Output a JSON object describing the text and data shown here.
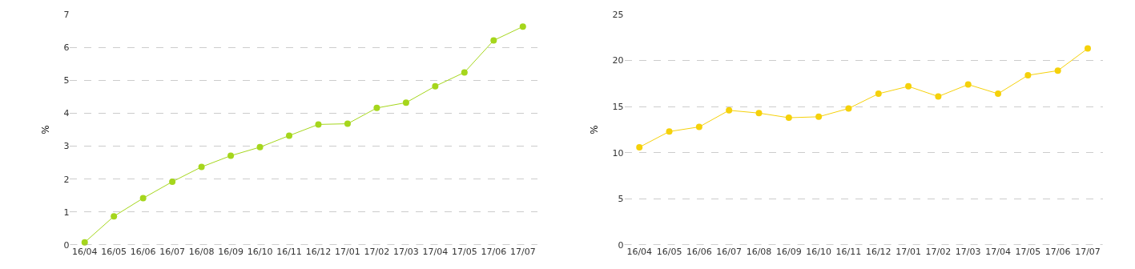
{
  "chart_data": [
    {
      "type": "line",
      "ylabel": "%",
      "categories": [
        "16/04",
        "16/05",
        "16/06",
        "16/07",
        "16/08",
        "16/09",
        "16/10",
        "16/11",
        "16/12",
        "17/01",
        "17/02",
        "17/03",
        "17/04",
        "17/05",
        "17/06",
        "17/07"
      ],
      "series": [
        {
          "color": "#a5d61c",
          "values": [
            0.08,
            0.87,
            1.42,
            1.92,
            2.37,
            2.71,
            2.97,
            3.32,
            3.66,
            3.68,
            4.16,
            4.32,
            4.82,
            5.24,
            6.21,
            6.63
          ]
        }
      ],
      "ylim": [
        0,
        7
      ],
      "yticks": [
        0,
        1,
        2,
        3,
        4,
        5,
        6,
        7
      ],
      "grid": "y",
      "marker": "circle",
      "line_style": "solid"
    },
    {
      "type": "line",
      "ylabel": "%",
      "categories": [
        "16/04",
        "16/05",
        "16/06",
        "16/07",
        "16/08",
        "16/09",
        "16/10",
        "16/11",
        "16/12",
        "17/01",
        "17/02",
        "17/03",
        "17/04",
        "17/05",
        "17/06",
        "17/07"
      ],
      "series": [
        {
          "color": "#f5d10a",
          "values": [
            10.6,
            12.3,
            12.8,
            14.6,
            14.3,
            13.8,
            13.9,
            14.8,
            16.4,
            17.2,
            16.1,
            17.4,
            16.4,
            18.4,
            18.9,
            21.3
          ]
        }
      ],
      "ylim": [
        0,
        25
      ],
      "yticks": [
        0,
        5,
        10,
        15,
        20,
        25
      ],
      "grid": "y",
      "marker": "circle",
      "line_style": "solid"
    }
  ]
}
